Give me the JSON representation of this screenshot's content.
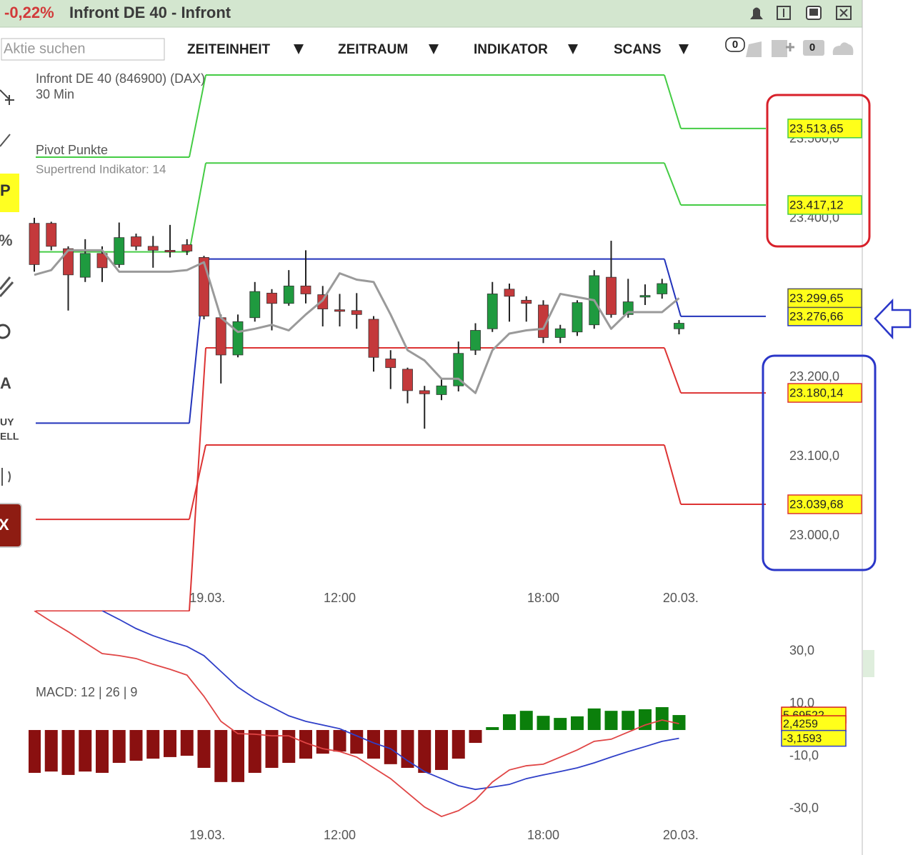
{
  "window": {
    "change": "-0,22%",
    "title": "Infront DE 40 - Infront"
  },
  "toolbar": {
    "search_placeholder": "Aktie suchen",
    "menus": [
      "ZEITEINHEIT",
      "ZEITRAUM",
      "INDIKATOR",
      "SCANS"
    ],
    "badges": [
      "0",
      "0"
    ]
  },
  "sidebar": {
    "tools": [
      "P",
      "%",
      "A",
      "UY",
      "ELL",
      "X"
    ]
  },
  "chart_data": [
    {
      "type": "candlestick",
      "title": "Infront DE 40 (846900) (DAX)",
      "subtitle": "30 Min",
      "legend": [
        "Pivot Punkte",
        "Supertrend Indikator: 14"
      ],
      "categories": [
        null,
        null,
        null,
        null,
        null,
        null,
        null,
        null,
        null,
        null,
        null,
        null,
        null,
        null,
        null,
        null,
        null,
        null,
        null,
        null,
        null,
        null,
        null,
        null,
        null,
        null,
        null,
        null,
        null,
        null,
        null,
        null,
        null,
        null,
        null,
        null,
        null,
        null,
        null
      ],
      "open": [
        23394,
        23394,
        23362,
        23326,
        23356,
        23342,
        23377,
        23365,
        23360,
        23367,
        23351,
        23275,
        23228,
        23275,
        23306,
        23293,
        23315,
        23304,
        23285,
        23284,
        23273,
        23223,
        23210,
        23183,
        23178,
        23189,
        23234,
        23261,
        23311,
        23297,
        23291,
        23250,
        23257,
        23266,
        23326,
        23279,
        23301,
        23305,
        23261
      ],
      "high": [
        23401,
        23396,
        23365,
        23374,
        23365,
        23395,
        23381,
        23378,
        23392,
        23374,
        23353,
        23279,
        23279,
        23320,
        23311,
        23335,
        23360,
        23315,
        23305,
        23306,
        23277,
        23234,
        23212,
        23189,
        23198,
        23245,
        23268,
        23320,
        23318,
        23302,
        23297,
        23266,
        23297,
        23335,
        23372,
        23324,
        23317,
        23324,
        23272
      ],
      "low": [
        23333,
        23360,
        23284,
        23320,
        23320,
        23338,
        23360,
        23338,
        23351,
        23354,
        23273,
        23192,
        23225,
        23270,
        23259,
        23290,
        23293,
        23264,
        23264,
        23261,
        23207,
        23185,
        23167,
        23135,
        23171,
        23182,
        23228,
        23257,
        23270,
        23270,
        23243,
        23243,
        23252,
        23261,
        23275,
        23275,
        23291,
        23299,
        23254
      ],
      "close": [
        23342,
        23365,
        23329,
        23356,
        23338,
        23376,
        23365,
        23360,
        23358,
        23359,
        23277,
        23228,
        23270,
        23308,
        23293,
        23315,
        23305,
        23286,
        23283,
        23279,
        23225,
        23212,
        23183,
        23179,
        23189,
        23230,
        23259,
        23305,
        23302,
        23293,
        23250,
        23261,
        23294,
        23328,
        23279,
        23295,
        23303,
        23318,
        23268
      ],
      "up_color": "#1f9a3f",
      "down_color": "#c4393b",
      "pivots": [
        {
          "color": "#44cc44",
          "values": [
            23477.5,
            23581,
            23513.65
          ],
          "value_labels": [
            null,
            null,
            "23.513,65"
          ]
        },
        {
          "color": "#44cc44",
          "values": [
            23358,
            23470,
            23417.12
          ],
          "value_labels": [
            null,
            null,
            "23.417,12"
          ]
        },
        {
          "color": "#2233bb",
          "values": [
            23142,
            23349,
            23276.66
          ],
          "value_labels": [
            null,
            null,
            "23.276,66"
          ]
        },
        {
          "color": "#dd3333",
          "values": [
            22905,
            23237,
            23180.14
          ],
          "value_labels": [
            null,
            null,
            "23.180,14"
          ]
        },
        {
          "color": "#dd3333",
          "values": [
            23020.7,
            23114.4,
            23039.68
          ],
          "value_labels": [
            null,
            null,
            "23.039,68"
          ]
        }
      ],
      "supertrend": {
        "color": "#9a9a9a",
        "values": [
          23329,
          23335,
          23360,
          23360,
          23360,
          23333,
          23333,
          23333,
          23333,
          23335,
          23345,
          23275,
          23257,
          23261,
          23266,
          23259,
          23279,
          23297,
          23331,
          23323,
          23320,
          23279,
          23234,
          23221,
          23198,
          23198,
          23180,
          23234,
          23255,
          23259,
          23261,
          23305,
          23301,
          23297,
          23261,
          23282,
          23282,
          23282,
          23299.65
        ],
        "value_labels": [
          null,
          null,
          null,
          null,
          null,
          null,
          null,
          null,
          null,
          null,
          null,
          null,
          null,
          null,
          null,
          null,
          null,
          null,
          null,
          null,
          null,
          null,
          null,
          null,
          null,
          null,
          null,
          null,
          null,
          null,
          null,
          null,
          null,
          null,
          null,
          null,
          null,
          null,
          "23.299,65"
        ]
      },
      "ylim": [
        22937,
        23586
      ],
      "yticks": [
        {
          "value": 23000,
          "label": "23.000,0"
        },
        {
          "value": 23100,
          "label": "23.100,0"
        },
        {
          "value": 23200,
          "label": "23.200,0"
        },
        {
          "value": 23300,
          "label": "23.300,0"
        },
        {
          "value": 23400,
          "label": "23.400,0"
        },
        {
          "value": 23500,
          "label": "23.500,0"
        }
      ],
      "xticks": [
        {
          "value": 10.2,
          "label": "19.03."
        },
        {
          "value": 18,
          "label": "12:00"
        },
        {
          "value": 30,
          "label": "18:00"
        },
        {
          "value": 38.1,
          "label": "20.03."
        }
      ]
    },
    {
      "type": "macd",
      "title": "MACD: 12 | 26 | 9",
      "categories": [
        null,
        null,
        null,
        null,
        null,
        null,
        null,
        null,
        null,
        null,
        null,
        null,
        null,
        null,
        null,
        null,
        null,
        null,
        null,
        null,
        null,
        null,
        null,
        null,
        null,
        null,
        null,
        null,
        null,
        null,
        null,
        null,
        null,
        null,
        null,
        null,
        null,
        null,
        null
      ],
      "histogram": {
        "up_color": "#0b7f0b",
        "down_color": "#8a1010",
        "values": [
          -16.3,
          -15.8,
          -17.1,
          -15.8,
          -16.3,
          -12.5,
          -11.7,
          -10.9,
          -10.3,
          -9.8,
          -14.4,
          -19.8,
          -19.8,
          -16.3,
          -14.4,
          -12.5,
          -10.9,
          -9.0,
          -8.2,
          -9.0,
          -10.9,
          -13.0,
          -14.4,
          -16.3,
          -15.2,
          -10.9,
          -4.9,
          1.1,
          6.0,
          7.3,
          5.4,
          4.6,
          5.2,
          8.2,
          7.3,
          7.3,
          7.9,
          8.7,
          5.69522
        ],
        "value_labels": [
          null,
          null,
          null,
          null,
          null,
          null,
          null,
          null,
          null,
          null,
          null,
          null,
          null,
          null,
          null,
          null,
          null,
          null,
          null,
          null,
          null,
          null,
          null,
          null,
          null,
          null,
          null,
          null,
          null,
          null,
          null,
          null,
          null,
          null,
          null,
          null,
          null,
          null,
          "5,69522"
        ]
      },
      "series": [
        {
          "color": "#2f3fc8",
          "values": [
            null,
            null,
            null,
            null,
            45.4,
            42.1,
            38.6,
            35.9,
            33.7,
            31.8,
            28.3,
            22.3,
            16.3,
            12.0,
            8.7,
            5.4,
            3.3,
            1.9,
            0.5,
            -2.2,
            -4.9,
            -7.1,
            -11.7,
            -15.8,
            -18.5,
            -21.2,
            -22.6,
            -21.7,
            -20.7,
            -18.5,
            -17.1,
            -15.8,
            -14.4,
            -12.5,
            -10.3,
            -8.2,
            -6.3,
            -4.3,
            -3.1593
          ],
          "value_labels": [
            null,
            null,
            null,
            null,
            null,
            null,
            null,
            null,
            null,
            null,
            null,
            null,
            null,
            null,
            null,
            null,
            null,
            null,
            null,
            null,
            null,
            null,
            null,
            null,
            null,
            null,
            null,
            null,
            null,
            null,
            null,
            null,
            null,
            null,
            null,
            null,
            null,
            null,
            "-3,1593"
          ]
        },
        {
          "color": "#e04545",
          "values": [
            45.4,
            41.3,
            37.4,
            33.2,
            29.1,
            28.3,
            27.2,
            25.0,
            23.1,
            20.9,
            12.8,
            3.3,
            -1.4,
            -1.6,
            -2.2,
            -2.2,
            -4.9,
            -7.1,
            -8.2,
            -10.3,
            -14.4,
            -18.5,
            -23.9,
            -29.3,
            -32.9,
            -30.7,
            -26.6,
            -19.8,
            -15.2,
            -13.6,
            -13.0,
            -10.3,
            -7.6,
            -4.3,
            -3.5,
            -0.8,
            1.9,
            3.8,
            2.4259
          ],
          "value_labels": [
            null,
            null,
            null,
            null,
            null,
            null,
            null,
            null,
            null,
            null,
            null,
            null,
            null,
            null,
            null,
            null,
            null,
            null,
            null,
            null,
            null,
            null,
            null,
            null,
            null,
            null,
            null,
            null,
            null,
            null,
            null,
            null,
            null,
            null,
            null,
            null,
            null,
            null,
            "2,4259"
          ]
        }
      ],
      "ylim": [
        -34,
        45.4
      ],
      "yticks": [
        {
          "value": 30,
          "label": "30,0"
        },
        {
          "value": 10,
          "label": "10,0"
        },
        {
          "value": -10,
          "label": "-10,0"
        },
        {
          "value": -30,
          "label": "-30,0"
        }
      ],
      "xticks": [
        {
          "value": 10.2,
          "label": "19.03."
        },
        {
          "value": 18,
          "label": "12:00"
        },
        {
          "value": 30,
          "label": "18:00"
        },
        {
          "value": 38.1,
          "label": "20.03."
        }
      ]
    }
  ]
}
